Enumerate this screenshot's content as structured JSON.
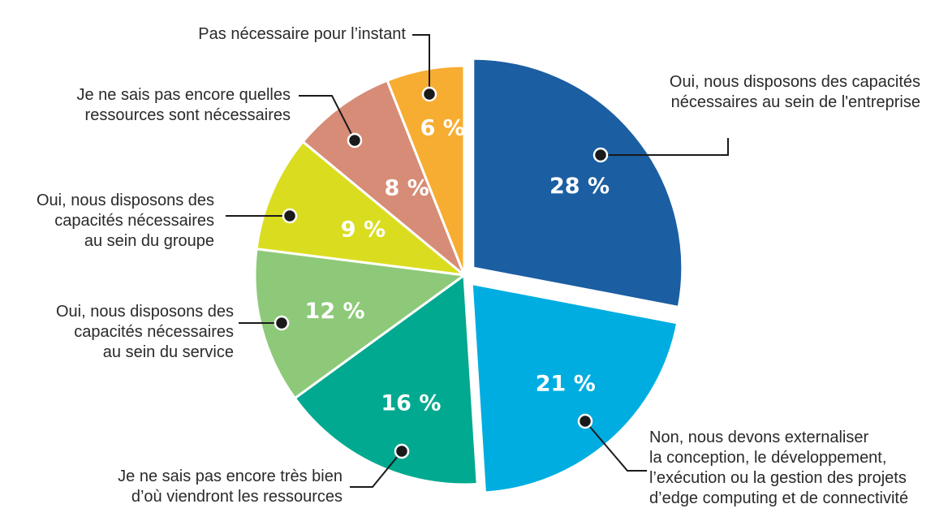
{
  "chart_data": {
    "type": "pie",
    "start_angle_deg": 0,
    "direction": "clockwise",
    "slices": [
      {
        "label": "Oui, nous disposons des capacités\nnécessaires au sein de l'entreprise",
        "value": 28,
        "value_label": "28 %",
        "color": "#1b5ea2",
        "exploded": true
      },
      {
        "label": "Non, nous devons externaliser\nla conception, le développement,\nl’exécution ou la gestion des projets\nd’edge computing et de connectivité",
        "value": 21,
        "value_label": "21 %",
        "color": "#00ade1",
        "exploded": true
      },
      {
        "label": "Je ne sais pas encore très bien\nd’où viendront les ressources",
        "value": 16,
        "value_label": "16 %",
        "color": "#00a98f",
        "exploded": false
      },
      {
        "label": "Oui, nous disposons des\ncapacités nécessaires\nau sein du service",
        "value": 12,
        "value_label": "12 %",
        "color": "#8dc979",
        "exploded": false
      },
      {
        "label": "Oui, nous disposons des\ncapacités nécessaires\nau sein du groupe",
        "value": 9,
        "value_label": "9 %",
        "color": "#dadd1f",
        "exploded": false
      },
      {
        "label": "Je ne sais pas encore quelles\nressources sont nécessaires",
        "value": 8,
        "value_label": "8 %",
        "color": "#d68c76",
        "exploded": false
      },
      {
        "label": "Pas nécessaire pour l’instant",
        "value": 6,
        "value_label": "6 %",
        "color": "#f7ad31",
        "exploded": false
      }
    ]
  }
}
